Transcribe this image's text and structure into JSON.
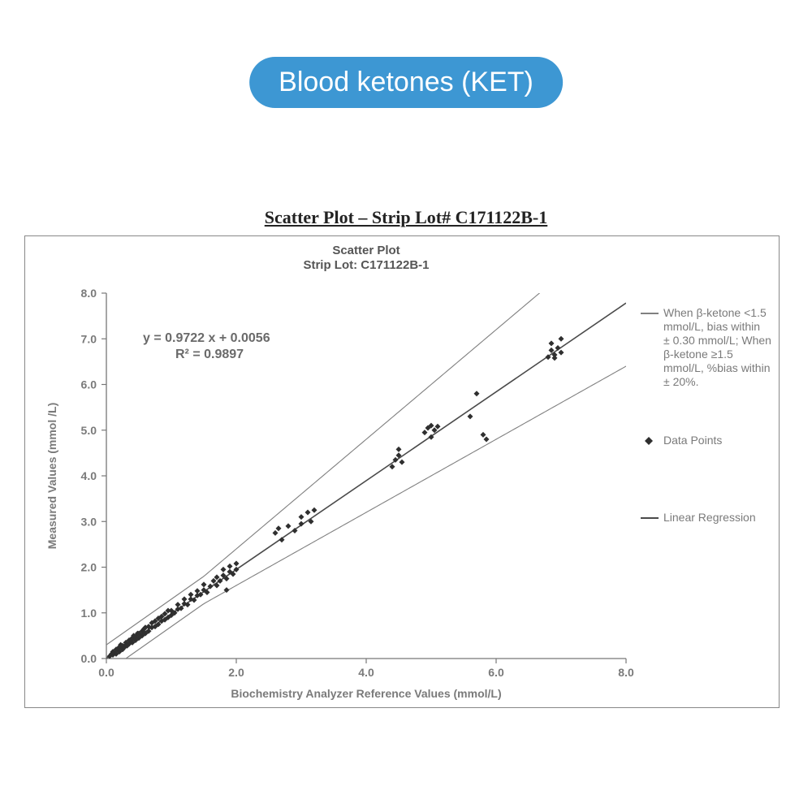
{
  "header": {
    "pill_label": "Blood ketones (KET)",
    "pill_bg": "#3d97d3",
    "pill_fg": "#ffffff",
    "pill_fontsize": 34,
    "pill_radius": 34
  },
  "subtitle": "Scatter Plot – Strip Lot# C171122B-1",
  "chart": {
    "type": "scatter",
    "inner_title_line1": "Scatter Plot",
    "inner_title_line2": "Strip Lot: C171122B-1",
    "xlabel": "Biochemistry Analyzer Reference Values (mmol/L)",
    "ylabel": "Measured Values (mmol /L)",
    "xlim": [
      0.0,
      8.0
    ],
    "ylim": [
      0.0,
      8.0
    ],
    "xticks": [
      0.0,
      2.0,
      4.0,
      6.0,
      8.0
    ],
    "yticks": [
      0.0,
      1.0,
      2.0,
      3.0,
      4.0,
      5.0,
      6.0,
      7.0,
      8.0
    ],
    "tick_format": "fixed1",
    "axis_color": "#777777",
    "grid": false,
    "regression": {
      "slope": 0.9722,
      "intercept": 0.0056,
      "r2": 0.9897,
      "line_color": "#4a4a4a",
      "line_width": 1.6,
      "equation_text": "y = 0.9722 x + 0.0056",
      "r2_text": "R² = 0.9897"
    },
    "bias_bounds": {
      "line_color": "#808080",
      "line_width": 1.1,
      "abs_threshold_x": 1.5,
      "abs_bias": 0.3,
      "pct_bias": 0.2
    },
    "marker": {
      "shape": "diamond",
      "size": 7,
      "fill": "#2f2f2f"
    },
    "label_fontsize": 14,
    "tick_fontsize": 14,
    "inner_title_fontsize": 15,
    "eq_fontsize": 16,
    "background_color": "#ffffff",
    "border_color": "#888888",
    "points": [
      [
        0.05,
        0.05
      ],
      [
        0.08,
        0.1
      ],
      [
        0.1,
        0.08
      ],
      [
        0.1,
        0.15
      ],
      [
        0.12,
        0.12
      ],
      [
        0.15,
        0.1
      ],
      [
        0.15,
        0.2
      ],
      [
        0.18,
        0.22
      ],
      [
        0.2,
        0.15
      ],
      [
        0.2,
        0.25
      ],
      [
        0.22,
        0.3
      ],
      [
        0.25,
        0.2
      ],
      [
        0.25,
        0.28
      ],
      [
        0.28,
        0.25
      ],
      [
        0.3,
        0.3
      ],
      [
        0.3,
        0.35
      ],
      [
        0.32,
        0.28
      ],
      [
        0.35,
        0.4
      ],
      [
        0.35,
        0.32
      ],
      [
        0.38,
        0.42
      ],
      [
        0.4,
        0.35
      ],
      [
        0.4,
        0.45
      ],
      [
        0.42,
        0.5
      ],
      [
        0.45,
        0.4
      ],
      [
        0.45,
        0.48
      ],
      [
        0.48,
        0.55
      ],
      [
        0.5,
        0.45
      ],
      [
        0.5,
        0.55
      ],
      [
        0.55,
        0.5
      ],
      [
        0.55,
        0.6
      ],
      [
        0.58,
        0.65
      ],
      [
        0.6,
        0.55
      ],
      [
        0.6,
        0.68
      ],
      [
        0.65,
        0.6
      ],
      [
        0.65,
        0.7
      ],
      [
        0.7,
        0.68
      ],
      [
        0.7,
        0.78
      ],
      [
        0.75,
        0.7
      ],
      [
        0.75,
        0.82
      ],
      [
        0.8,
        0.75
      ],
      [
        0.8,
        0.88
      ],
      [
        0.85,
        0.82
      ],
      [
        0.85,
        0.92
      ],
      [
        0.9,
        0.85
      ],
      [
        0.9,
        0.98
      ],
      [
        0.95,
        0.9
      ],
      [
        0.95,
        1.05
      ],
      [
        1.0,
        0.95
      ],
      [
        1.0,
        1.05
      ],
      [
        1.05,
        1.0
      ],
      [
        1.1,
        1.08
      ],
      [
        1.1,
        1.18
      ],
      [
        1.15,
        1.1
      ],
      [
        1.2,
        1.2
      ],
      [
        1.2,
        1.3
      ],
      [
        1.25,
        1.18
      ],
      [
        1.3,
        1.3
      ],
      [
        1.3,
        1.4
      ],
      [
        1.35,
        1.28
      ],
      [
        1.4,
        1.38
      ],
      [
        1.4,
        1.48
      ],
      [
        1.45,
        1.4
      ],
      [
        1.5,
        1.5
      ],
      [
        1.5,
        1.62
      ],
      [
        1.55,
        1.45
      ],
      [
        1.6,
        1.58
      ],
      [
        1.65,
        1.7
      ],
      [
        1.7,
        1.6
      ],
      [
        1.7,
        1.78
      ],
      [
        1.75,
        1.7
      ],
      [
        1.8,
        1.82
      ],
      [
        1.8,
        1.95
      ],
      [
        1.85,
        1.75
      ],
      [
        1.9,
        1.9
      ],
      [
        1.9,
        2.02
      ],
      [
        1.95,
        1.85
      ],
      [
        2.0,
        1.95
      ],
      [
        2.0,
        2.08
      ],
      [
        1.85,
        1.5
      ],
      [
        2.6,
        2.75
      ],
      [
        2.65,
        2.85
      ],
      [
        2.7,
        2.6
      ],
      [
        2.8,
        2.9
      ],
      [
        2.9,
        2.8
      ],
      [
        3.0,
        3.1
      ],
      [
        3.0,
        2.95
      ],
      [
        3.1,
        3.2
      ],
      [
        3.15,
        3.0
      ],
      [
        3.2,
        3.25
      ],
      [
        4.4,
        4.2
      ],
      [
        4.45,
        4.35
      ],
      [
        4.5,
        4.45
      ],
      [
        4.5,
        4.58
      ],
      [
        4.55,
        4.3
      ],
      [
        4.9,
        4.95
      ],
      [
        4.95,
        5.05
      ],
      [
        5.0,
        4.85
      ],
      [
        5.0,
        5.1
      ],
      [
        5.05,
        5.0
      ],
      [
        5.1,
        5.08
      ],
      [
        5.6,
        5.3
      ],
      [
        5.7,
        5.8
      ],
      [
        5.8,
        4.9
      ],
      [
        5.85,
        4.8
      ],
      [
        6.8,
        6.6
      ],
      [
        6.85,
        6.75
      ],
      [
        6.9,
        6.65
      ],
      [
        6.95,
        6.8
      ],
      [
        7.0,
        6.7
      ],
      [
        7.0,
        7.0
      ],
      [
        6.9,
        6.58
      ],
      [
        6.85,
        6.9
      ]
    ]
  },
  "legend": {
    "bias_text": "When β-ketone <1.5 mmol/L, bias within ± 0.30 mmol/L; When β-ketone ≥1.5 mmol/L, %bias within ± 20%.",
    "data_points_label": "Data Points",
    "regression_label": "Linear Regression",
    "text_color": "#7a7a7a",
    "fontsize": 14
  }
}
